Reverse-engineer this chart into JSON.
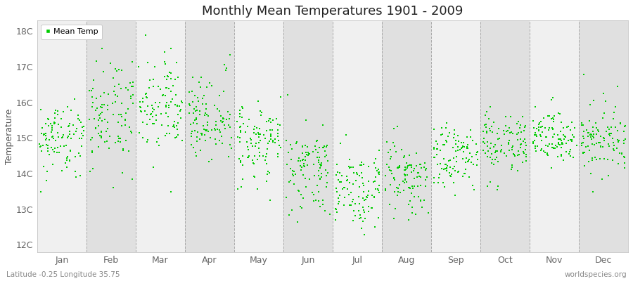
{
  "title": "Monthly Mean Temperatures 1901 - 2009",
  "ylabel": "Temperature",
  "xlabel": "",
  "ytick_labels": [
    "12C",
    "13C",
    "14C",
    "15C",
    "16C",
    "17C",
    "18C"
  ],
  "ytick_values": [
    12,
    13,
    14,
    15,
    16,
    17,
    18
  ],
  "ylim": [
    11.8,
    18.3
  ],
  "months": [
    "Jan",
    "Feb",
    "Mar",
    "Apr",
    "May",
    "Jun",
    "Jul",
    "Aug",
    "Sep",
    "Oct",
    "Nov",
    "Dec"
  ],
  "n_years": 109,
  "marker_color": "#00CC00",
  "marker_size": 2,
  "background_color": "#ffffff",
  "band_colors": [
    "#f0f0f0",
    "#e0e0e0"
  ],
  "dashed_line_color": "#999999",
  "title_fontsize": 13,
  "axis_label_fontsize": 9,
  "tick_label_fontsize": 9,
  "footer_left": "Latitude -0.25 Longitude 35.75",
  "footer_right": "worldspecies.org",
  "legend_label": "Mean Temp",
  "monthly_mean_temps": [
    15.0,
    15.6,
    15.9,
    15.5,
    15.0,
    14.1,
    13.6,
    13.9,
    14.5,
    14.9,
    15.0,
    14.9
  ],
  "monthly_std": [
    0.4,
    0.6,
    0.6,
    0.5,
    0.5,
    0.55,
    0.55,
    0.5,
    0.4,
    0.4,
    0.38,
    0.38
  ],
  "monthly_range_extra": [
    1.2,
    1.5,
    1.5,
    1.2,
    1.0,
    0.9,
    0.9,
    0.9,
    0.8,
    0.8,
    0.8,
    1.5
  ]
}
